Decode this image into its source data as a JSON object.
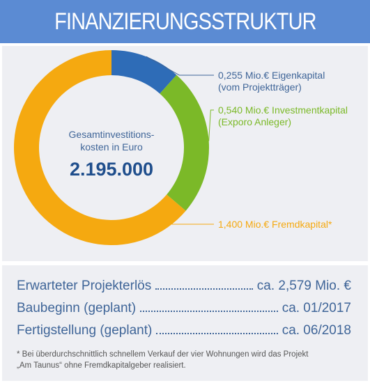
{
  "header": {
    "title": "FINANZIERUNGSSTRUKTUR"
  },
  "chart_data": {
    "type": "pie",
    "center_label_lines": [
      "Gesamtinvestitions-",
      "kosten in Euro"
    ],
    "center_value": "2.195.000",
    "slices": [
      {
        "value": 0.255,
        "color": "#2e6cb7",
        "label_lines": [
          "0,255 Mio.€ Eigenkapital",
          "(vom Projektträger)"
        ],
        "label_color": "#3f6598"
      },
      {
        "value": 0.54,
        "color": "#7bb928",
        "label_lines": [
          "0,540 Mio.€ Investmentkapital",
          "(Exporo Anleger)"
        ],
        "label_color": "#7bb928"
      },
      {
        "value": 1.4,
        "color": "#f5a910",
        "label_lines": [
          "1,400 Mio.€ Fremdkapital*"
        ],
        "label_color": "#f5a910"
      }
    ]
  },
  "summary": {
    "rows": [
      {
        "label": "Erwarteter Projekterlös",
        "value": "ca. 2,579 Mio. €"
      },
      {
        "label": "Baubeginn (geplant)",
        "value": "ca. 01/2017"
      },
      {
        "label": "Fertigstellung (geplant)",
        "value": "ca. 06/2018"
      }
    ],
    "footnote_line1": "* Bei überdurchschnittlich schnellem Verkauf der vier Wohnungen wird das Projekt",
    "footnote_line2": "„Am Taunus“ ohne Fremdkapitalgeber realisiert."
  }
}
